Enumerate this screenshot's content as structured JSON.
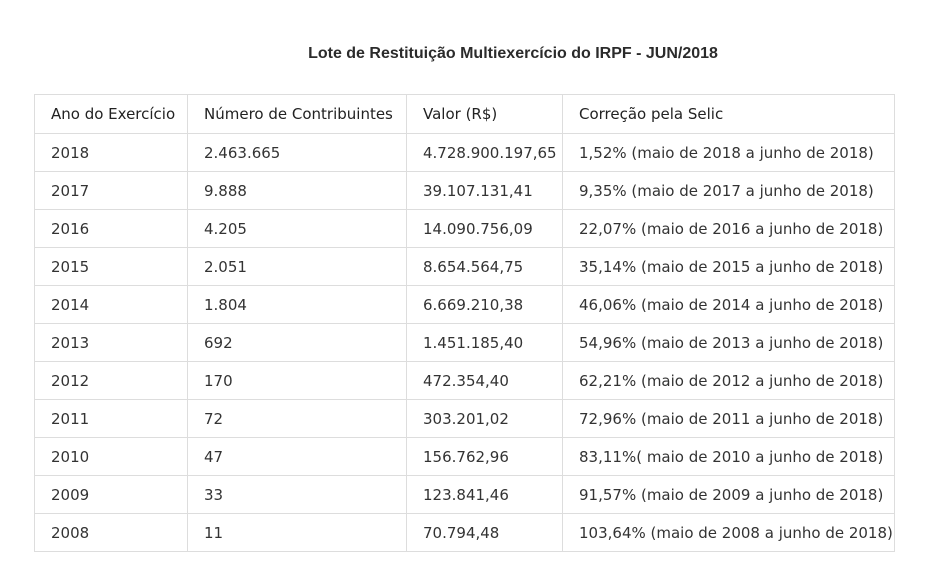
{
  "title": "Lote de Restituição Multiexercício do IRPF - JUN/2018",
  "table": {
    "headers": [
      "Ano do Exercício",
      "Número de Contribuintes",
      "Valor (R$)",
      "Correção pela Selic"
    ],
    "rows": [
      [
        "2018",
        "2.463.665",
        "4.728.900.197,65",
        "1,52% (maio de 2018 a junho de 2018)"
      ],
      [
        "2017",
        "9.888",
        "39.107.131,41",
        "9,35% (maio de 2017 a junho de 2018)"
      ],
      [
        "2016",
        "4.205",
        "14.090.756,09",
        "22,07% (maio de 2016 a junho de 2018)"
      ],
      [
        "2015",
        "2.051",
        "8.654.564,75",
        "35,14% (maio de 2015 a junho de 2018)"
      ],
      [
        "2014",
        "1.804",
        "6.669.210,38",
        "46,06% (maio de 2014 a junho de 2018)"
      ],
      [
        "2013",
        "692",
        "1.451.185,40",
        "54,96% (maio de 2013 a junho de 2018)"
      ],
      [
        "2012",
        "170",
        "472.354,40",
        "62,21% (maio de 2012 a junho de 2018)"
      ],
      [
        "2011",
        "72",
        "303.201,02",
        "72,96% (maio de 2011 a junho de 2018)"
      ],
      [
        "2010",
        "47",
        "156.762,96",
        "83,11%( maio de 2010 a junho de 2018)"
      ],
      [
        "2009",
        "33",
        "123.841,46",
        "91,57% (maio de 2009 a junho de 2018)"
      ],
      [
        "2008",
        "11",
        "70.794,48",
        "103,64% (maio de 2008 a junho de 2018)"
      ]
    ]
  },
  "colors": {
    "border": "#dddddd",
    "text": "#333333",
    "title": "#2b2b2b"
  }
}
